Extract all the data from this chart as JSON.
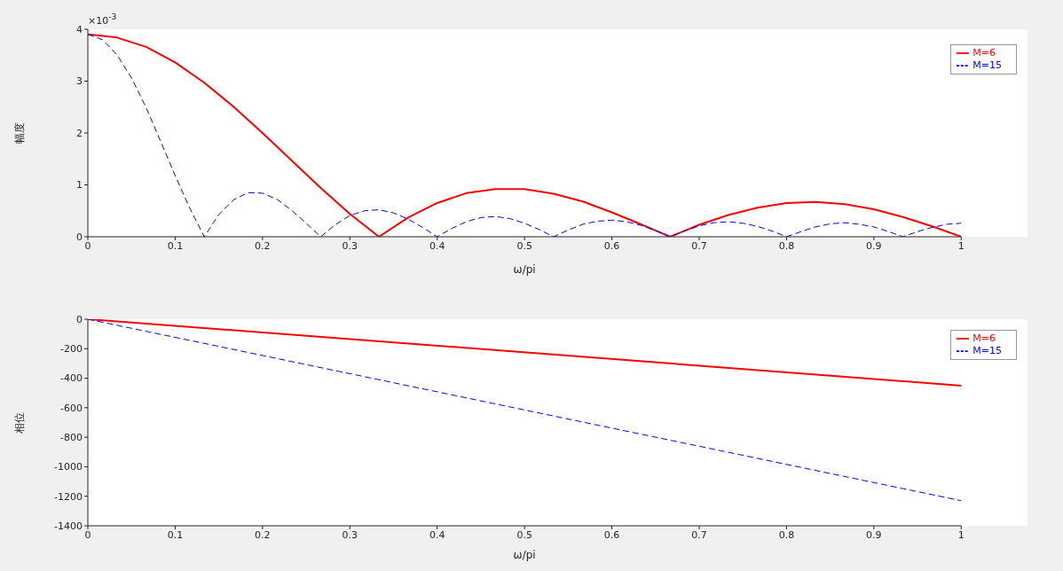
{
  "chart_data": [
    {
      "type": "line",
      "xlabel": "ω/pi",
      "ylabel": "幅度",
      "annotations": [
        "×10$^{-3}$"
      ],
      "xlim": [
        0,
        1
      ],
      "xticks": [
        0,
        0.1,
        0.2,
        0.3,
        0.4,
        0.5,
        0.6,
        0.7,
        0.8,
        0.9,
        1
      ],
      "ylim": [
        0,
        4
      ],
      "yticks": [
        0,
        1,
        2,
        3,
        4
      ],
      "grid": false,
      "legend": "top right",
      "series": [
        {
          "name": "M=6",
          "color": "#ff0000",
          "line_style": "solid",
          "x": [
            0,
            0.0333,
            0.0667,
            0.1,
            0.1333,
            0.1667,
            0.2,
            0.2333,
            0.2667,
            0.3,
            0.3333,
            0.3667,
            0.4,
            0.4333,
            0.4667,
            0.5,
            0.5333,
            0.5667,
            0.6,
            0.6333,
            0.6667,
            0.7,
            0.7333,
            0.7667,
            0.8,
            0.8333,
            0.8667,
            0.9,
            0.9333,
            0.9667,
            1
          ],
          "values": [
            3.9,
            3.84,
            3.66,
            3.36,
            2.97,
            2.51,
            2.0,
            1.47,
            0.94,
            0.44,
            0,
            0.37,
            0.65,
            0.84,
            0.92,
            0.92,
            0.83,
            0.68,
            0.47,
            0.24,
            0,
            0.23,
            0.42,
            0.56,
            0.65,
            0.67,
            0.63,
            0.53,
            0.38,
            0.2,
            0
          ]
        },
        {
          "name": "M=15",
          "color": "#0000ff",
          "line_style": "dashed",
          "x": [
            0,
            0.0167,
            0.0333,
            0.05,
            0.0667,
            0.0833,
            0.1,
            0.1167,
            0.1333,
            0.15,
            0.1667,
            0.1833,
            0.2,
            0.2167,
            0.2333,
            0.25,
            0.2667,
            0.2833,
            0.3,
            0.3167,
            0.3333,
            0.35,
            0.3667,
            0.3833,
            0.4,
            0.4167,
            0.4333,
            0.45,
            0.4667,
            0.4833,
            0.5,
            0.5167,
            0.5333,
            0.55,
            0.5667,
            0.5833,
            0.6,
            0.6167,
            0.6333,
            0.65,
            0.6667,
            0.6833,
            0.7,
            0.7167,
            0.7333,
            0.75,
            0.7667,
            0.7833,
            0.8,
            0.8167,
            0.8333,
            0.85,
            0.8667,
            0.8833,
            0.9,
            0.9167,
            0.9333,
            0.95,
            0.9667,
            0.9833,
            1
          ],
          "values": [
            3.9,
            3.8,
            3.51,
            3.06,
            2.49,
            1.84,
            1.18,
            0.55,
            0,
            0.43,
            0.71,
            0.85,
            0.84,
            0.72,
            0.51,
            0.26,
            0,
            0.23,
            0.41,
            0.5,
            0.52,
            0.46,
            0.34,
            0.18,
            0,
            0.16,
            0.29,
            0.37,
            0.39,
            0.35,
            0.26,
            0.14,
            0,
            0.13,
            0.24,
            0.3,
            0.32,
            0.29,
            0.22,
            0.12,
            0,
            0.11,
            0.21,
            0.27,
            0.29,
            0.26,
            0.2,
            0.11,
            0,
            0.1,
            0.19,
            0.25,
            0.27,
            0.24,
            0.19,
            0.1,
            0,
            0.1,
            0.18,
            0.24,
            0.26
          ]
        }
      ]
    },
    {
      "type": "line",
      "xlabel": "ω/pi",
      "ylabel": "相位",
      "xlim": [
        0,
        1
      ],
      "xticks": [
        0,
        0.1,
        0.2,
        0.3,
        0.4,
        0.5,
        0.6,
        0.7,
        0.8,
        0.9,
        1
      ],
      "ylim": [
        -1400,
        0
      ],
      "yticks": [
        -1400,
        -1200,
        -1000,
        -800,
        -600,
        -400,
        -200,
        0
      ],
      "grid": false,
      "legend": "top right",
      "series": [
        {
          "name": "M=6",
          "color": "#ff0000",
          "line_style": "solid",
          "x": [
            0,
            1
          ],
          "values": [
            0,
            -450
          ]
        },
        {
          "name": "M=15",
          "color": "#0000ff",
          "line_style": "dashed",
          "x": [
            0,
            1
          ],
          "values": [
            0,
            -1230
          ]
        }
      ]
    }
  ]
}
